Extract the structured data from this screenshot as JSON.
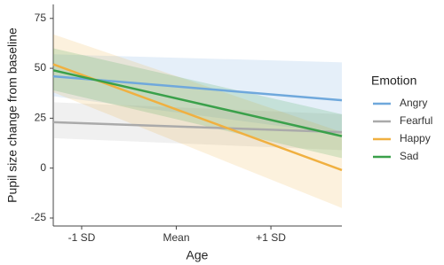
{
  "chart_data": {
    "type": "line",
    "x_label": "Age",
    "y_label": "Pupil size change from baseline",
    "legend_title": "Emotion",
    "legend_position": "right",
    "x": [
      -1.3,
      1.75
    ],
    "xlim": [
      -1.3,
      1.75
    ],
    "xticks": [
      {
        "value": -1,
        "label": "-1 SD"
      },
      {
        "value": 0,
        "label": "Mean"
      },
      {
        "value": 1,
        "label": "+1 SD"
      }
    ],
    "ylim": [
      -29,
      82
    ],
    "yticks": [
      -25,
      0,
      25,
      50,
      75
    ],
    "series": [
      {
        "name": "Angry",
        "color": "#6fa8dc",
        "values": [
          46,
          34
        ],
        "lower": [
          36,
          17
        ],
        "upper": [
          57,
          53
        ]
      },
      {
        "name": "Fearful",
        "color": "#aaaaaa",
        "values": [
          23,
          18
        ],
        "lower": [
          15,
          9
        ],
        "upper": [
          33,
          27
        ]
      },
      {
        "name": "Happy",
        "color": "#f0b040",
        "values": [
          52,
          -1
        ],
        "lower": [
          38,
          -20
        ],
        "upper": [
          67,
          18
        ]
      },
      {
        "name": "Sad",
        "color": "#3aa04a",
        "values": [
          49,
          16
        ],
        "lower": [
          39,
          5
        ],
        "upper": [
          60,
          27
        ]
      }
    ]
  }
}
